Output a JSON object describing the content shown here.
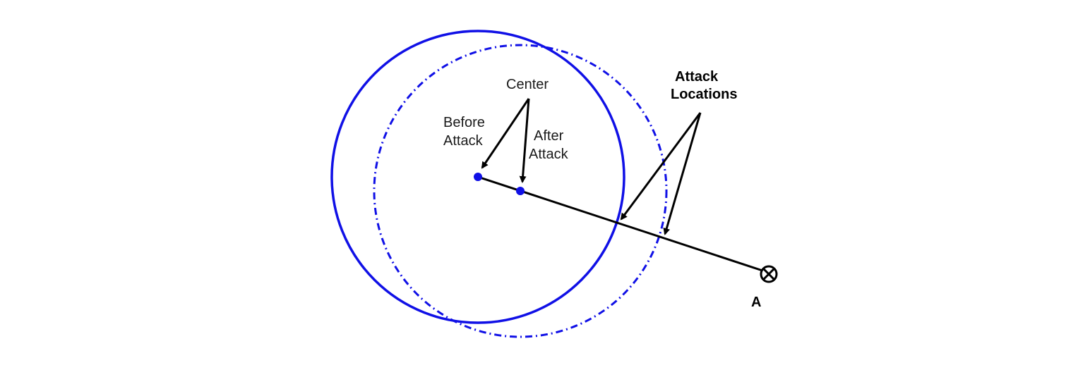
{
  "labels": {
    "center": "Center",
    "before_line1": "Before",
    "before_line2": "Attack",
    "after_line1": "After",
    "after_line2": "Attack",
    "attack_line1": "Attack",
    "attack_line2": "Locations",
    "point_a": "A"
  },
  "colors": {
    "circle": "#1010e6",
    "line": "#000000",
    "arrow": "#000000"
  }
}
